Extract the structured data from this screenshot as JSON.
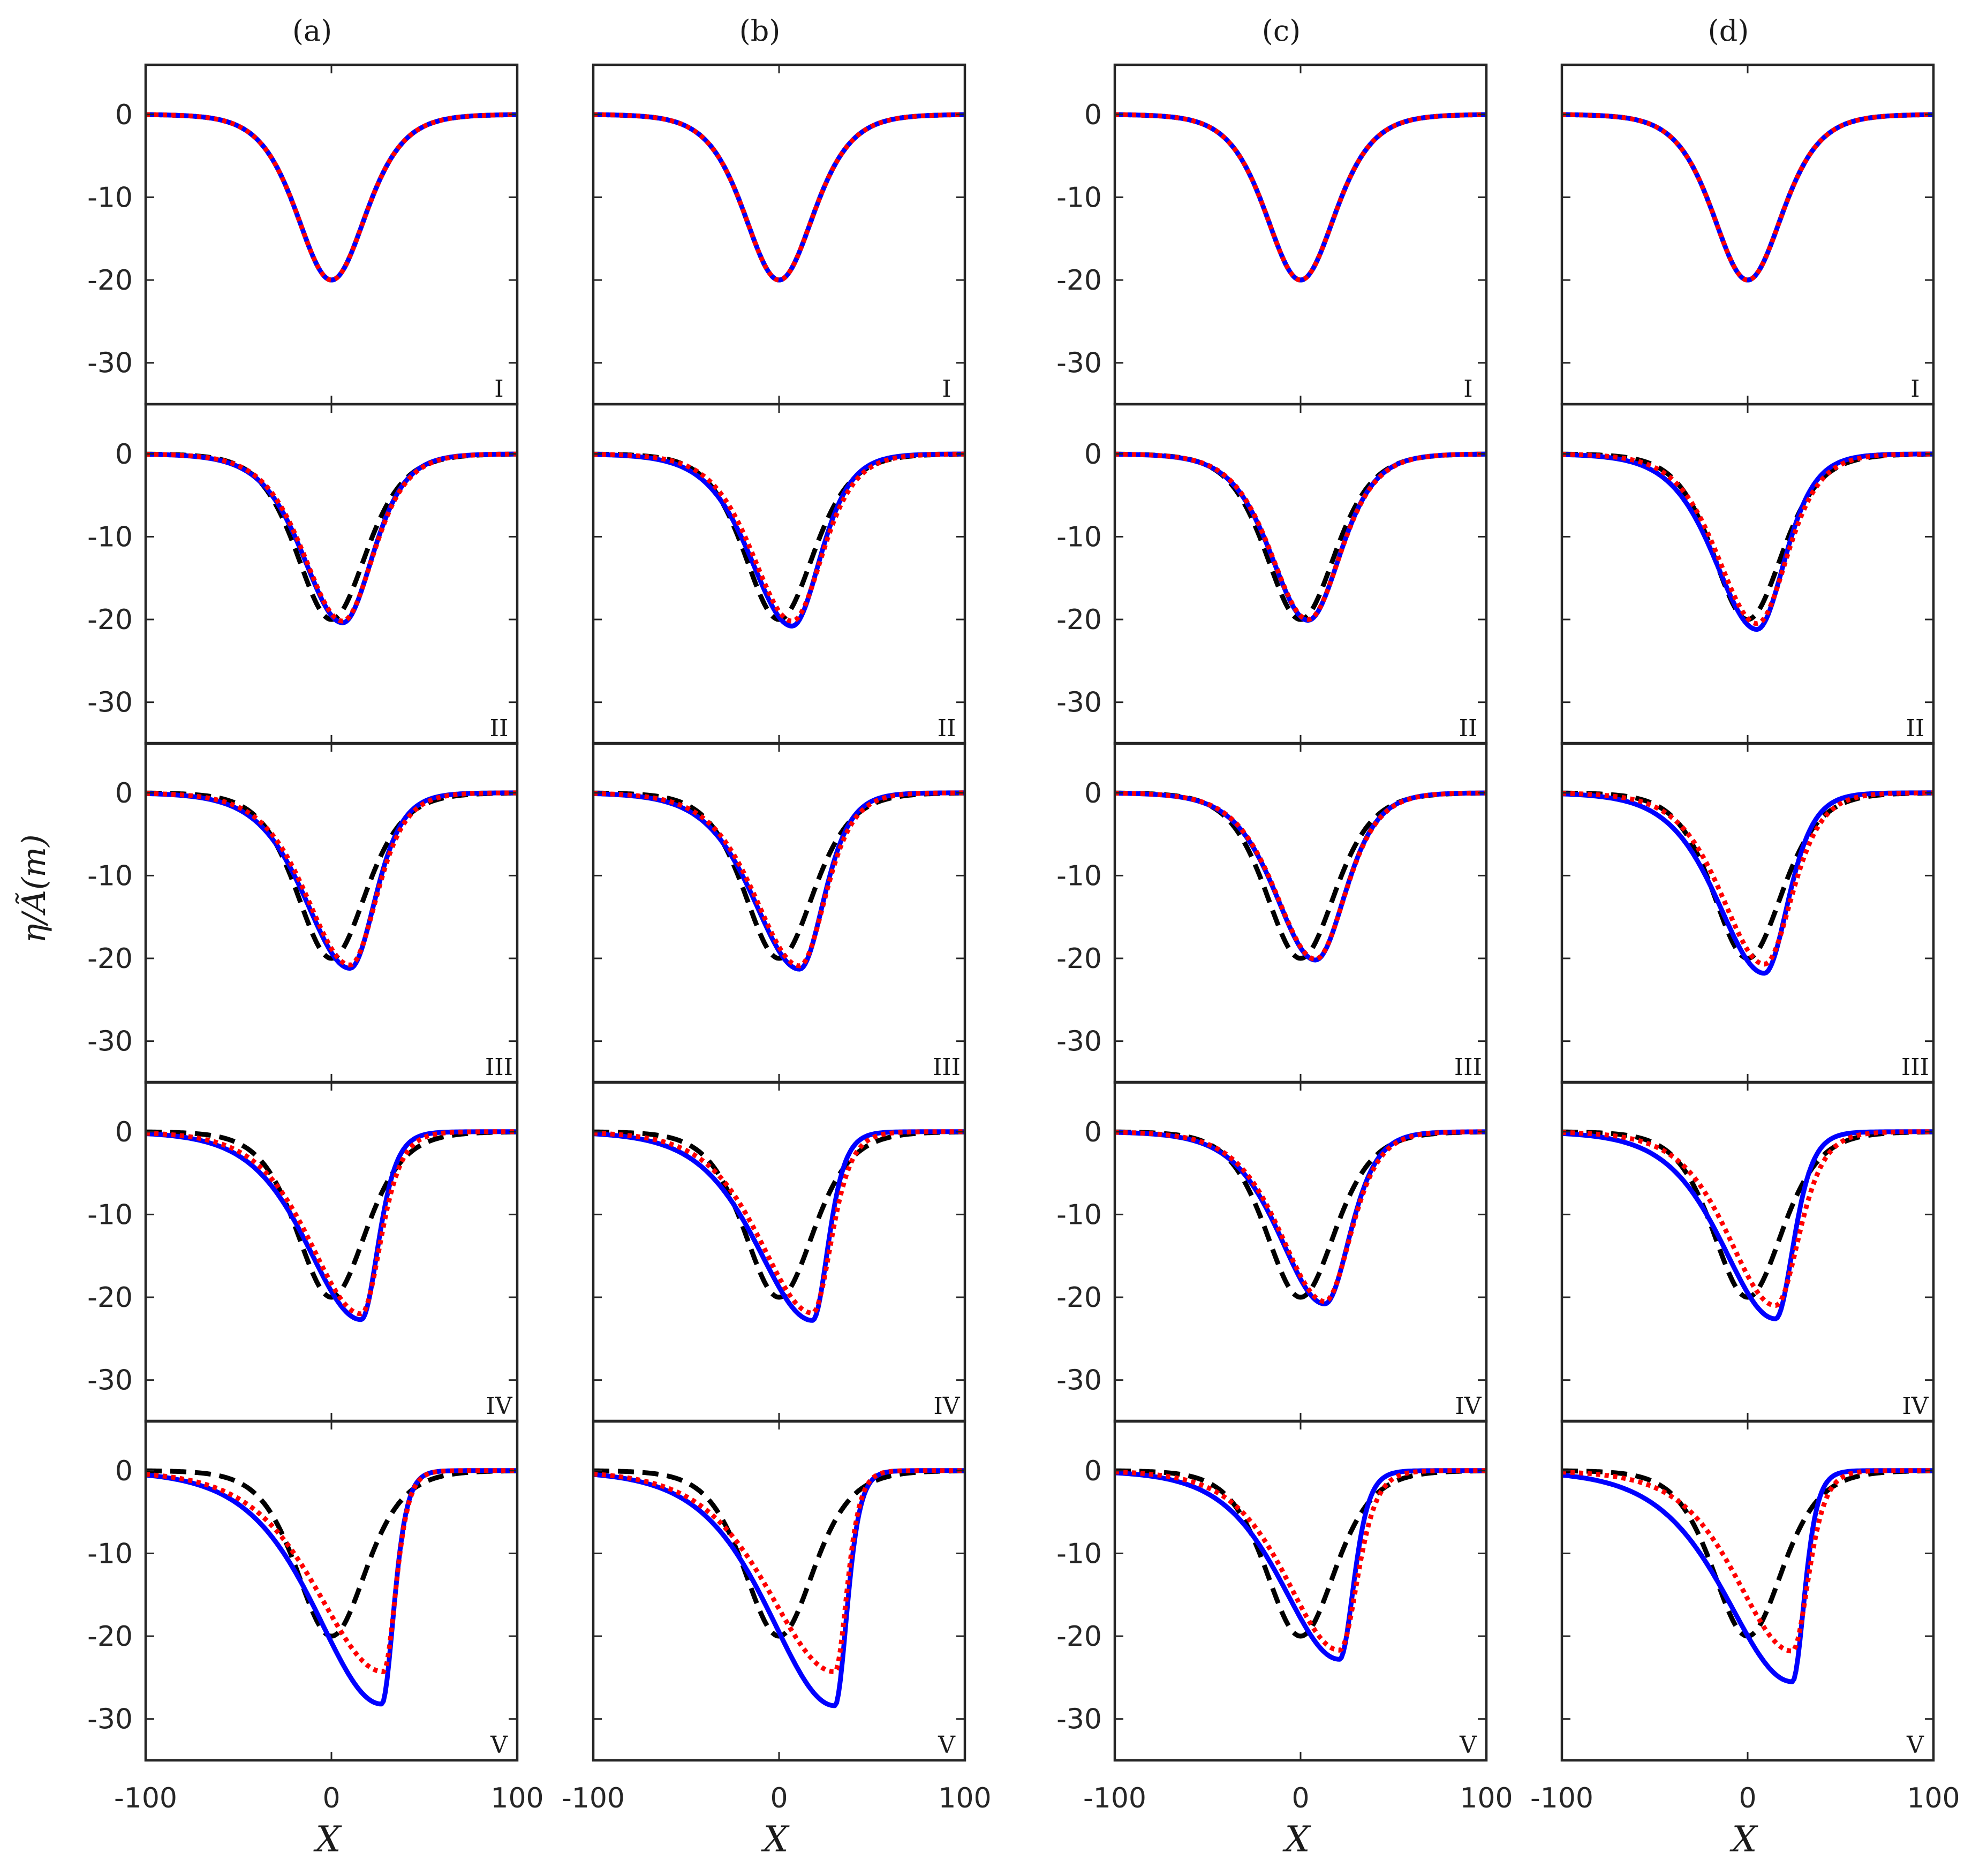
{
  "chart_data": {
    "type": "line",
    "layout": "grid of 4 columns by 5 rows",
    "columns": [
      "(a)",
      "(b)",
      "(c)",
      "(d)"
    ],
    "rows": [
      "I",
      "II",
      "III",
      "IV",
      "V"
    ],
    "xlabel": "X",
    "ylabel": "η/Ã(m)",
    "xlim": [
      -100,
      100
    ],
    "ylim": [
      -35,
      6
    ],
    "xticks": [
      -100,
      0,
      100
    ],
    "yticks": [
      0,
      -10,
      -20,
      -30
    ],
    "grid": false,
    "legend": "none",
    "line_styles": [
      {
        "style": "solid",
        "color": "#0000ff"
      },
      {
        "style": "dotted",
        "color": "#ff0000"
      },
      {
        "style": "dashed",
        "color": "#000000"
      }
    ],
    "initial_profile": {
      "center": 0,
      "trough": -20,
      "width": 25
    },
    "panels": [
      [
        {
          "blue": {
            "min": -20.0,
            "at": 0
          },
          "red": {
            "min": -20.0,
            "at": 0
          }
        },
        {
          "blue": {
            "min": -20.4,
            "at": 6
          },
          "red": {
            "min": -20.2,
            "at": 6
          }
        },
        {
          "blue": {
            "min": -21.2,
            "at": 10
          },
          "red": {
            "min": -20.8,
            "at": 10
          }
        },
        {
          "blue": {
            "min": -22.7,
            "at": 16
          },
          "red": {
            "min": -22.0,
            "at": 16
          }
        },
        {
          "blue": {
            "min": -28.2,
            "at": 27
          },
          "red": {
            "min": -24.3,
            "at": 28
          }
        }
      ],
      [
        {
          "blue": {
            "min": -20.0,
            "at": 0
          },
          "red": {
            "min": -20.0,
            "at": 0
          }
        },
        {
          "blue": {
            "min": -20.8,
            "at": 7
          },
          "red": {
            "min": -20.2,
            "at": 7
          }
        },
        {
          "blue": {
            "min": -21.3,
            "at": 11
          },
          "red": {
            "min": -20.9,
            "at": 11
          }
        },
        {
          "blue": {
            "min": -22.8,
            "at": 18
          },
          "red": {
            "min": -21.9,
            "at": 18
          }
        },
        {
          "blue": {
            "min": -28.4,
            "at": 30
          },
          "red": {
            "min": -24.3,
            "at": 30
          }
        }
      ],
      [
        {
          "blue": {
            "min": -20.0,
            "at": 0
          },
          "red": {
            "min": -20.0,
            "at": 0
          }
        },
        {
          "blue": {
            "min": -20.1,
            "at": 4
          },
          "red": {
            "min": -20.0,
            "at": 4
          }
        },
        {
          "blue": {
            "min": -20.2,
            "at": 8
          },
          "red": {
            "min": -20.1,
            "at": 8
          }
        },
        {
          "blue": {
            "min": -20.8,
            "at": 13
          },
          "red": {
            "min": -20.5,
            "at": 13
          }
        },
        {
          "blue": {
            "min": -22.8,
            "at": 21
          },
          "red": {
            "min": -21.7,
            "at": 21
          }
        }
      ],
      [
        {
          "blue": {
            "min": -20.0,
            "at": 0
          },
          "red": {
            "min": -20.0,
            "at": 0
          }
        },
        {
          "blue": {
            "min": -21.2,
            "at": 5
          },
          "red": {
            "min": -20.5,
            "at": 5
          }
        },
        {
          "blue": {
            "min": -21.8,
            "at": 9
          },
          "red": {
            "min": -20.7,
            "at": 9
          }
        },
        {
          "blue": {
            "min": -22.6,
            "at": 15
          },
          "red": {
            "min": -21.0,
            "at": 15
          }
        },
        {
          "blue": {
            "min": -25.5,
            "at": 24
          },
          "red": {
            "min": -21.8,
            "at": 24
          }
        }
      ]
    ]
  }
}
